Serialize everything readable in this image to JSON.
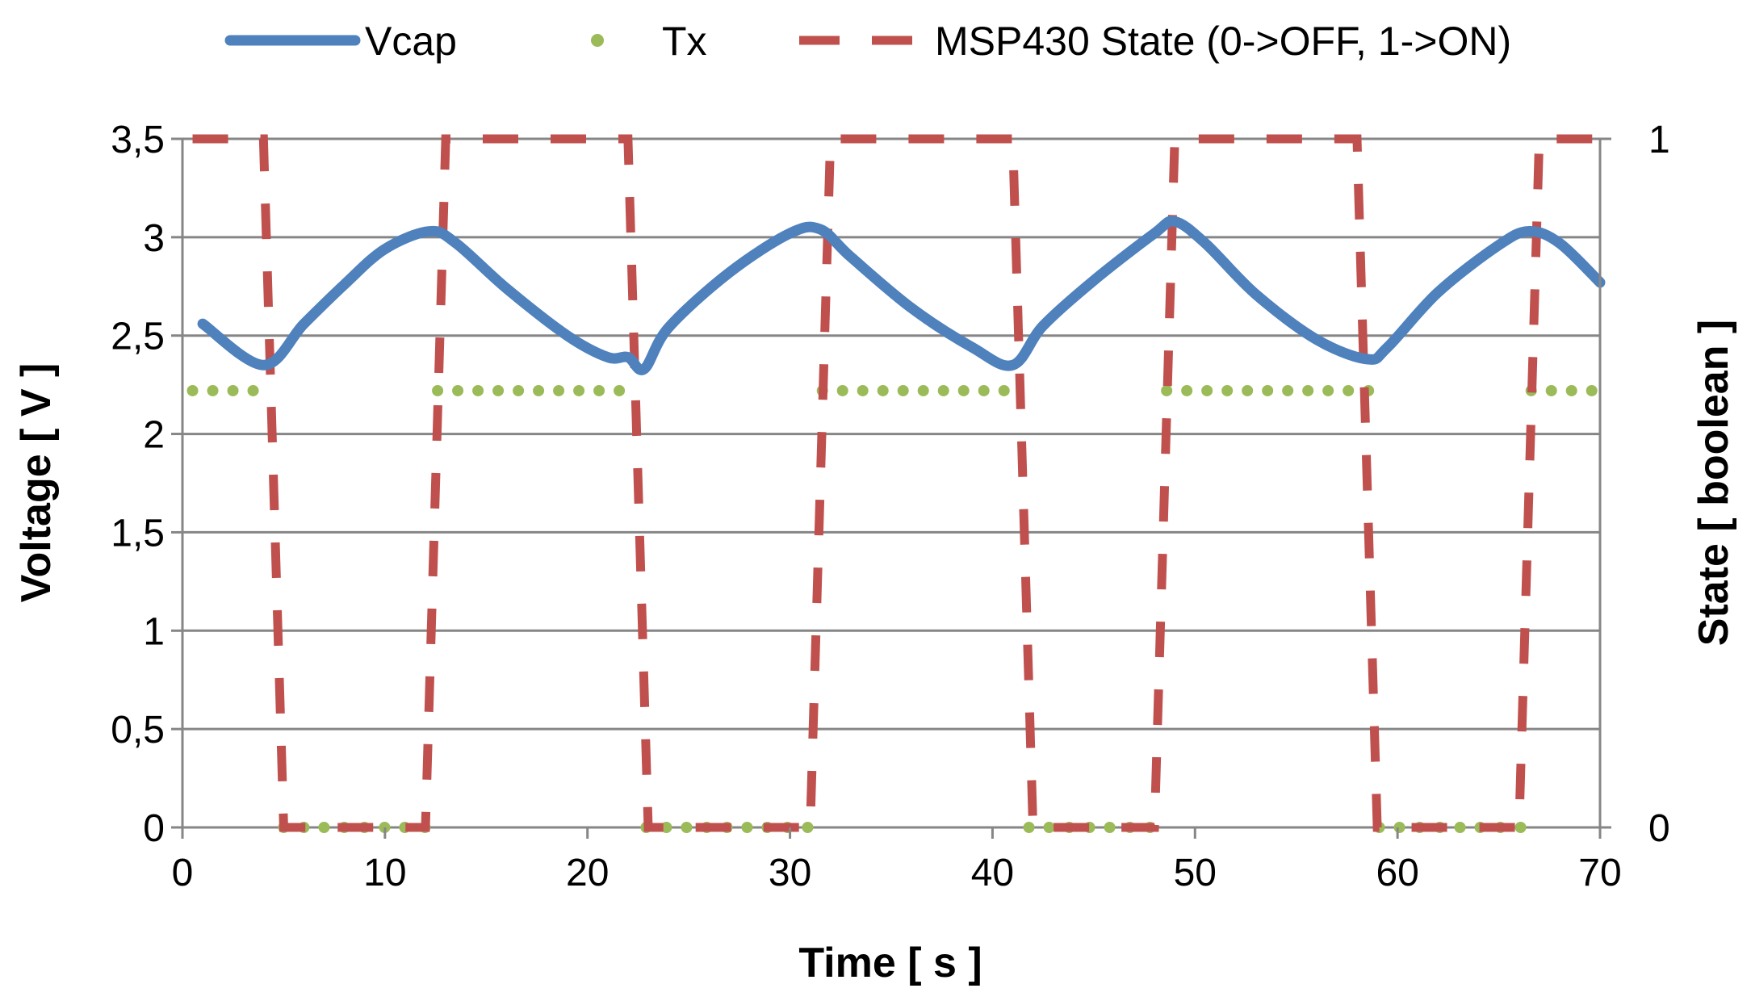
{
  "chart_data": {
    "type": "line",
    "title": "",
    "xlabel": "Time [ s ]",
    "ylabel": "Voltage [ V ]",
    "y2label": "State [ boolean ]",
    "xlim": [
      0,
      70
    ],
    "ylim": [
      0,
      3.5
    ],
    "y2lim": [
      0,
      1
    ],
    "grid": true,
    "legend_position": "top",
    "x_ticks": [
      0,
      10,
      20,
      30,
      40,
      50,
      60,
      70
    ],
    "y_ticks": [
      0,
      0.5,
      1,
      1.5,
      2,
      2.5,
      3,
      3.5
    ],
    "y_tick_labels": [
      "0",
      "0,5",
      "1",
      "1,5",
      "2",
      "2,5",
      "3",
      "3,5"
    ],
    "y2_ticks": [
      0,
      1
    ],
    "y2_tick_labels": [
      "0",
      "1"
    ],
    "series": [
      {
        "name": "Vcap",
        "axis": "left",
        "style": "solid",
        "color": "#4F81BD",
        "x": [
          1,
          4,
          6,
          8,
          10,
          12.2,
          13.5,
          16,
          19,
          21,
          22,
          22.8,
          24,
          27,
          30,
          31.5,
          33,
          36,
          39,
          41,
          42.5,
          45,
          48,
          49,
          50.5,
          53,
          56,
          58.5,
          59.5,
          62,
          65,
          66.5,
          68,
          70
        ],
        "values": [
          2.56,
          2.35,
          2.56,
          2.76,
          2.94,
          3.03,
          2.97,
          2.74,
          2.5,
          2.39,
          2.39,
          2.33,
          2.54,
          2.82,
          3.02,
          3.04,
          2.9,
          2.64,
          2.44,
          2.35,
          2.55,
          2.78,
          3.02,
          3.08,
          2.97,
          2.71,
          2.48,
          2.38,
          2.44,
          2.72,
          2.96,
          3.03,
          2.97,
          2.77
        ]
      },
      {
        "name": "Tx",
        "axis": "left",
        "style": "dotted",
        "color": "#9BBB59",
        "segments": [
          {
            "x": [
              0.5,
              4.2
            ],
            "value": 2.22
          },
          {
            "x": [
              12.6,
              22.2
            ],
            "value": 2.22
          },
          {
            "x": [
              31.6,
              41
            ],
            "value": 2.22
          },
          {
            "x": [
              48.6,
              58.6
            ],
            "value": 2.22
          },
          {
            "x": [
              66.6,
              70
            ],
            "value": 2.22
          },
          {
            "x": [
              5,
              12
            ],
            "value": 0
          },
          {
            "x": [
              22.9,
              31.3
            ],
            "value": 0
          },
          {
            "x": [
              41.8,
              48.2
            ],
            "value": 0
          },
          {
            "x": [
              59.1,
              66.3
            ],
            "value": 0
          }
        ]
      },
      {
        "name": "MSP430 State (0->OFF, 1->ON)",
        "axis": "right",
        "style": "dashed",
        "color": "#C0504D",
        "x": [
          0.5,
          4,
          5,
          12,
          13,
          22,
          23,
          31,
          32,
          41,
          42,
          48,
          49,
          58,
          59,
          66,
          67,
          70
        ],
        "values": [
          1,
          1,
          0,
          0,
          1,
          1,
          0,
          0,
          1,
          1,
          0,
          0,
          1,
          1,
          0,
          0,
          1,
          1
        ]
      }
    ],
    "legend": [
      "Vcap",
      "Tx",
      "MSP430 State (0->OFF, 1->ON)"
    ]
  }
}
